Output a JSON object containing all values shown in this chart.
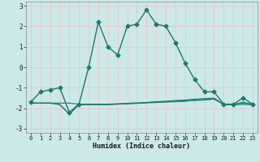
{
  "xlabel": "Humidex (Indice chaleur)",
  "bg_color": "#cde8e8",
  "grid_color": "#e8c8c8",
  "line_color": "#1a7a6e",
  "xlim": [
    -0.5,
    23.5
  ],
  "ylim": [
    -3.2,
    3.2
  ],
  "xticks": [
    0,
    1,
    2,
    3,
    4,
    5,
    6,
    7,
    8,
    9,
    10,
    11,
    12,
    13,
    14,
    15,
    16,
    17,
    18,
    19,
    20,
    21,
    22,
    23
  ],
  "yticks": [
    -3,
    -2,
    -1,
    0,
    1,
    2,
    3
  ],
  "series": [
    {
      "x": [
        0,
        1,
        2,
        3,
        4,
        5,
        6,
        7,
        8,
        9,
        10,
        11,
        12,
        13,
        14,
        15,
        16,
        17,
        18,
        19,
        20,
        21,
        22,
        23
      ],
      "y": [
        -1.7,
        -1.2,
        -1.1,
        -1.0,
        -2.2,
        -1.8,
        0.0,
        2.2,
        1.0,
        0.6,
        2.0,
        2.1,
        2.8,
        2.1,
        2.0,
        1.2,
        0.2,
        -0.6,
        -1.2,
        -1.2,
        -1.8,
        -1.8,
        -1.5,
        -1.8
      ],
      "marker": "D",
      "markersize": 2.5,
      "linewidth": 1.0
    },
    {
      "x": [
        0,
        1,
        2,
        3,
        4,
        5,
        6,
        7,
        8,
        9,
        10,
        11,
        12,
        13,
        14,
        15,
        16,
        17,
        18,
        19,
        20,
        21,
        22,
        23
      ],
      "y": [
        -1.75,
        -1.75,
        -1.75,
        -1.75,
        -1.75,
        -1.8,
        -1.8,
        -1.8,
        -1.8,
        -1.78,
        -1.76,
        -1.74,
        -1.72,
        -1.7,
        -1.68,
        -1.66,
        -1.64,
        -1.62,
        -1.6,
        -1.55,
        -1.8,
        -1.82,
        -1.82,
        -1.82
      ],
      "marker": null,
      "linewidth": 0.8
    },
    {
      "x": [
        0,
        1,
        2,
        3,
        4,
        5,
        6,
        7,
        8,
        9,
        10,
        11,
        12,
        13,
        14,
        15,
        16,
        17,
        18,
        19,
        20,
        21,
        22,
        23
      ],
      "y": [
        -1.75,
        -1.75,
        -1.75,
        -1.82,
        -2.28,
        -1.82,
        -1.82,
        -1.82,
        -1.82,
        -1.8,
        -1.78,
        -1.76,
        -1.74,
        -1.72,
        -1.7,
        -1.68,
        -1.66,
        -1.6,
        -1.58,
        -1.55,
        -1.82,
        -1.82,
        -1.75,
        -1.82
      ],
      "marker": null,
      "linewidth": 0.8
    },
    {
      "x": [
        0,
        1,
        2,
        3,
        4,
        5,
        6,
        7,
        8,
        9,
        10,
        11,
        12,
        13,
        14,
        15,
        16,
        17,
        18,
        19,
        20,
        21,
        22,
        23
      ],
      "y": [
        -1.75,
        -1.75,
        -1.75,
        -1.82,
        -2.28,
        -1.82,
        -1.82,
        -1.82,
        -1.82,
        -1.8,
        -1.78,
        -1.76,
        -1.72,
        -1.68,
        -1.66,
        -1.62,
        -1.6,
        -1.56,
        -1.53,
        -1.5,
        -1.82,
        -1.82,
        -1.7,
        -1.82
      ],
      "marker": null,
      "linewidth": 0.8
    }
  ]
}
